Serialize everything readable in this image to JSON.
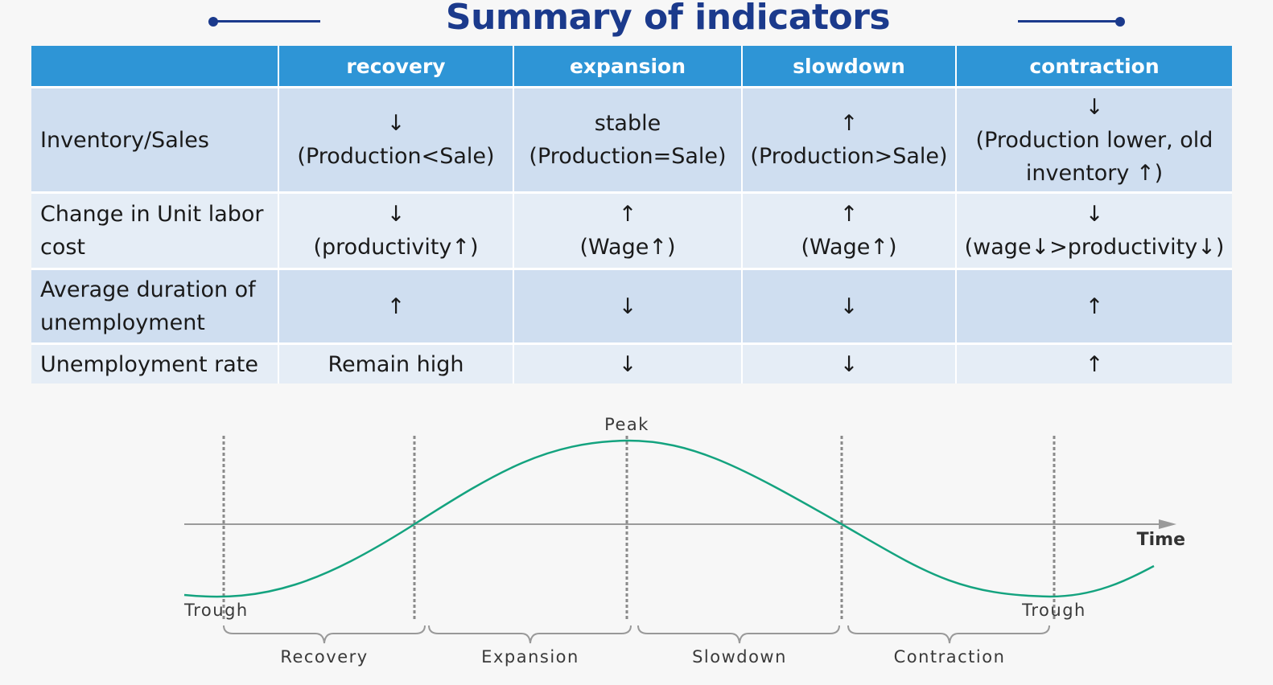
{
  "title": "Summary of indicators",
  "colors": {
    "title": "#1b3a8c",
    "header_bg": "#2e95d6",
    "row_dark": "#cfdef0",
    "row_light": "#e5edf6",
    "curve": "#14a37f"
  },
  "table": {
    "headers": [
      "",
      "recovery",
      "expansion",
      "slowdown",
      "contraction"
    ],
    "rows": [
      {
        "label": "Inventory/Sales",
        "cells": [
          [
            "↓",
            "(Production<Sale)"
          ],
          [
            "stable",
            "(Production=Sale)"
          ],
          [
            "↑",
            "(Production>Sale)"
          ],
          [
            "↓",
            "(Production lower, old",
            "inventory ↑)"
          ]
        ]
      },
      {
        "label": [
          "Change in Unit labor",
          "cost"
        ],
        "cells": [
          [
            "↓",
            "(productivity↑)"
          ],
          [
            "↑",
            "(Wage↑)"
          ],
          [
            "↑",
            "(Wage↑)"
          ],
          [
            "↓",
            "(wage↓>productivity↓)"
          ]
        ]
      },
      {
        "label": [
          "Average duration of",
          "unemployment"
        ],
        "cells": [
          [
            "↑"
          ],
          [
            "↓"
          ],
          [
            "↓"
          ],
          [
            "↑"
          ]
        ]
      },
      {
        "label": "Unemployment rate",
        "cells": [
          [
            "Remain high"
          ],
          [
            "↓"
          ],
          [
            "↓"
          ],
          [
            "↑"
          ]
        ]
      }
    ]
  },
  "diagram": {
    "peak_label": "Peak",
    "axis_label": "Time",
    "trough_left": "Trough",
    "trough_right": "Trough",
    "phases": [
      "Recovery",
      "Expansion",
      "Slowdown",
      "Contraction"
    ]
  }
}
